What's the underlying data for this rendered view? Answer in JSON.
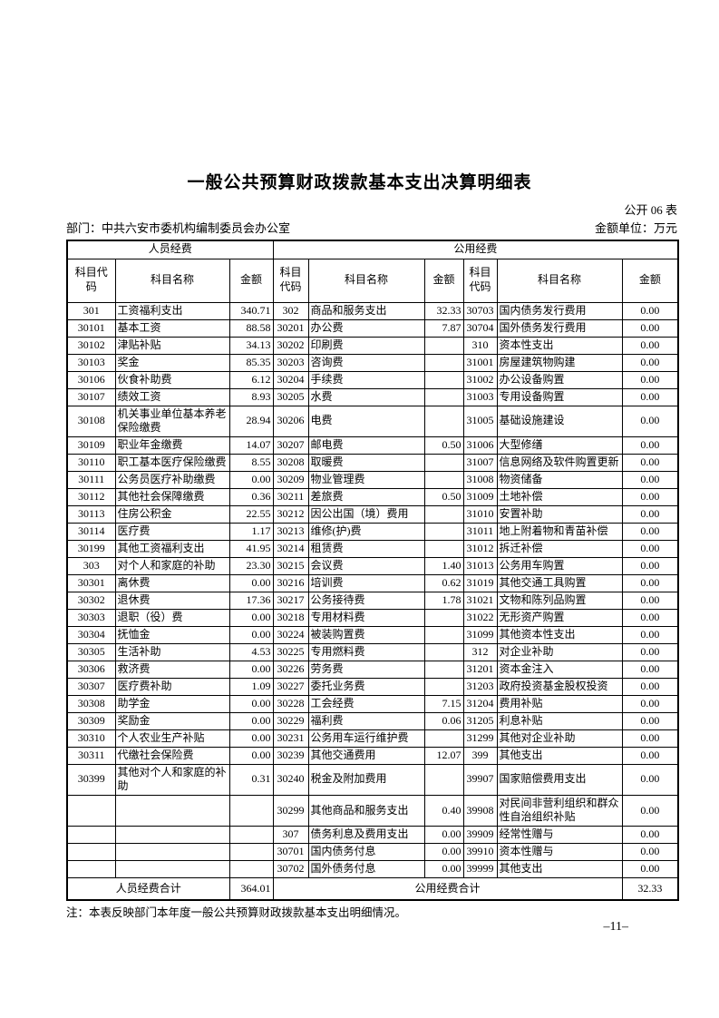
{
  "page": {
    "title": "一般公共预算财政拨款基本支出决算明细表",
    "table_code": "公开 06 表",
    "department": "部门：中共六安市委机构编制委员会办公室",
    "unit": "金额单位：万元",
    "note": "注：本表反映部门本年度一般公共预算财政拨款基本支出明细情况。",
    "page_number": "–11–"
  },
  "colors": {
    "text": "#000000",
    "background": "#ffffff",
    "border": "#000000"
  },
  "table": {
    "group_headers": [
      "人员经费",
      "公用经费"
    ],
    "column_headers": [
      "科目代\n码",
      "科目名称",
      "金额",
      "科目\n代码",
      "科目名称",
      "金额",
      "科目\n代码",
      "科目名称",
      "金额"
    ],
    "rows": [
      [
        "301",
        "工资福利支出",
        "340.71",
        "302",
        "商品和服务支出",
        "32.33",
        "30703",
        "国内债务发行费用",
        "0.00"
      ],
      [
        "30101",
        "基本工资",
        "88.58",
        "30201",
        "办公费",
        "7.87",
        "30704",
        "国外债务发行费用",
        "0.00"
      ],
      [
        "30102",
        "津贴补贴",
        "34.13",
        "30202",
        "印刷费",
        "",
        "310",
        "资本性支出",
        "0.00"
      ],
      [
        "30103",
        "奖金",
        "85.35",
        "30203",
        "咨询费",
        "",
        "31001",
        "房屋建筑物购建",
        "0.00"
      ],
      [
        "30106",
        "伙食补助费",
        "6.12",
        "30204",
        "手续费",
        "",
        "31002",
        "办公设备购置",
        "0.00"
      ],
      [
        "30107",
        "绩效工资",
        "8.93",
        "30205",
        "水费",
        "",
        "31003",
        "专用设备购置",
        "0.00"
      ],
      [
        "30108",
        "机关事业单位基本养老保险缴费",
        "28.94",
        "30206",
        "电费",
        "",
        "31005",
        "基础设施建设",
        "0.00"
      ],
      [
        "30109",
        "职业年金缴费",
        "14.07",
        "30207",
        "邮电费",
        "0.50",
        "31006",
        "大型修缮",
        "0.00"
      ],
      [
        "30110",
        "职工基本医疗保险缴费",
        "8.55",
        "30208",
        "取暖费",
        "",
        "31007",
        "信息网络及软件购置更新",
        "0.00"
      ],
      [
        "30111",
        "公务员医疗补助缴费",
        "0.00",
        "30209",
        "物业管理费",
        "",
        "31008",
        "物资储备",
        "0.00"
      ],
      [
        "30112",
        "其他社会保障缴费",
        "0.36",
        "30211",
        "差旅费",
        "0.50",
        "31009",
        "土地补偿",
        "0.00"
      ],
      [
        "30113",
        "住房公积金",
        "22.55",
        "30212",
        "因公出国（境）费用",
        "",
        "31010",
        "安置补助",
        "0.00"
      ],
      [
        "30114",
        "医疗费",
        "1.17",
        "30213",
        "维修(护)费",
        "",
        "31011",
        "地上附着物和青苗补偿",
        "0.00"
      ],
      [
        "30199",
        "其他工资福利支出",
        "41.95",
        "30214",
        "租赁费",
        "",
        "31012",
        "拆迁补偿",
        "0.00"
      ],
      [
        "303",
        "对个人和家庭的补助",
        "23.30",
        "30215",
        "会议费",
        "1.40",
        "31013",
        "公务用车购置",
        "0.00"
      ],
      [
        "30301",
        "离休费",
        "0.00",
        "30216",
        "培训费",
        "0.62",
        "31019",
        "其他交通工具购置",
        "0.00"
      ],
      [
        "30302",
        "退休费",
        "17.36",
        "30217",
        "公务接待费",
        "1.78",
        "31021",
        "文物和陈列品购置",
        "0.00"
      ],
      [
        "30303",
        "退职（役）费",
        "0.00",
        "30218",
        "专用材料费",
        "",
        "31022",
        "无形资产购置",
        "0.00"
      ],
      [
        "30304",
        "抚恤金",
        "0.00",
        "30224",
        "被装购置费",
        "",
        "31099",
        "其他资本性支出",
        "0.00"
      ],
      [
        "30305",
        "生活补助",
        "4.53",
        "30225",
        "专用燃料费",
        "",
        "312",
        "对企业补助",
        "0.00"
      ],
      [
        "30306",
        "救济费",
        "0.00",
        "30226",
        "劳务费",
        "",
        "31201",
        "资本金注入",
        "0.00"
      ],
      [
        "30307",
        "医疗费补助",
        "1.09",
        "30227",
        "委托业务费",
        "",
        "31203",
        "政府投资基金股权投资",
        "0.00"
      ],
      [
        "30308",
        "助学金",
        "0.00",
        "30228",
        "工会经费",
        "7.15",
        "31204",
        "费用补贴",
        "0.00"
      ],
      [
        "30309",
        "奖励金",
        "0.00",
        "30229",
        "福利费",
        "0.06",
        "31205",
        "利息补贴",
        "0.00"
      ],
      [
        "30310",
        "个人农业生产补贴",
        "0.00",
        "30231",
        "公务用车运行维护费",
        "",
        "31299",
        "其他对企业补助",
        "0.00"
      ],
      [
        "30311",
        "代缴社会保险费",
        "0.00",
        "30239",
        "其他交通费用",
        "12.07",
        "399",
        "其他支出",
        "0.00"
      ],
      [
        "30399",
        "其他对个人和家庭的补助",
        "0.31",
        "30240",
        "税金及附加费用",
        "",
        "39907",
        "国家赔偿费用支出",
        "0.00"
      ],
      [
        "",
        "",
        "",
        "30299",
        "其他商品和服务支出",
        "0.40",
        "39908",
        "对民间非营利组织和群众性自治组织补贴",
        "0.00"
      ],
      [
        "",
        "",
        "",
        "307",
        "债务利息及费用支出",
        "0.00",
        "39909",
        "经常性赠与",
        "0.00"
      ],
      [
        "",
        "",
        "",
        "30701",
        "国内债务付息",
        "0.00",
        "39910",
        "资本性赠与",
        "0.00"
      ],
      [
        "",
        "",
        "",
        "30702",
        "国外债务付息",
        "0.00",
        "39999",
        "其他支出",
        "0.00"
      ]
    ],
    "totals": {
      "personnel_label": "人员经费合计",
      "personnel_amount": "364.01",
      "public_label": "公用经费合计",
      "public_amount": "32.33"
    }
  }
}
